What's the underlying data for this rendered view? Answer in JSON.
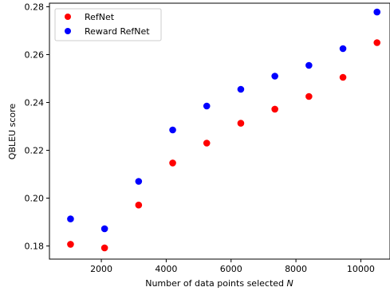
{
  "chart_data": {
    "type": "scatter",
    "xlabel_text": "Number of data points selected ",
    "xlabel_var": "N",
    "ylabel": "QBLEU score",
    "xlim": [
      400,
      10900
    ],
    "ylim": [
      0.1745,
      0.2815
    ],
    "xticks": [
      2000,
      4000,
      6000,
      8000,
      10000
    ],
    "yticks": [
      0.18,
      0.2,
      0.22,
      0.24,
      0.26,
      0.28
    ],
    "x": [
      1050,
      2100,
      3150,
      4200,
      5250,
      6300,
      7350,
      8400,
      9450,
      10500
    ],
    "series": [
      {
        "name": "RefNet",
        "color": "#ff0000",
        "values": [
          0.1807,
          0.1792,
          0.1971,
          0.2147,
          0.223,
          0.2313,
          0.2372,
          0.2425,
          0.2505,
          0.265
        ]
      },
      {
        "name": "Reward RefNet",
        "color": "#0000ff",
        "values": [
          0.1913,
          0.1872,
          0.207,
          0.2285,
          0.2385,
          0.2455,
          0.251,
          0.2555,
          0.2625,
          0.2778
        ]
      }
    ],
    "legend_position": "top-left",
    "grid": false
  }
}
